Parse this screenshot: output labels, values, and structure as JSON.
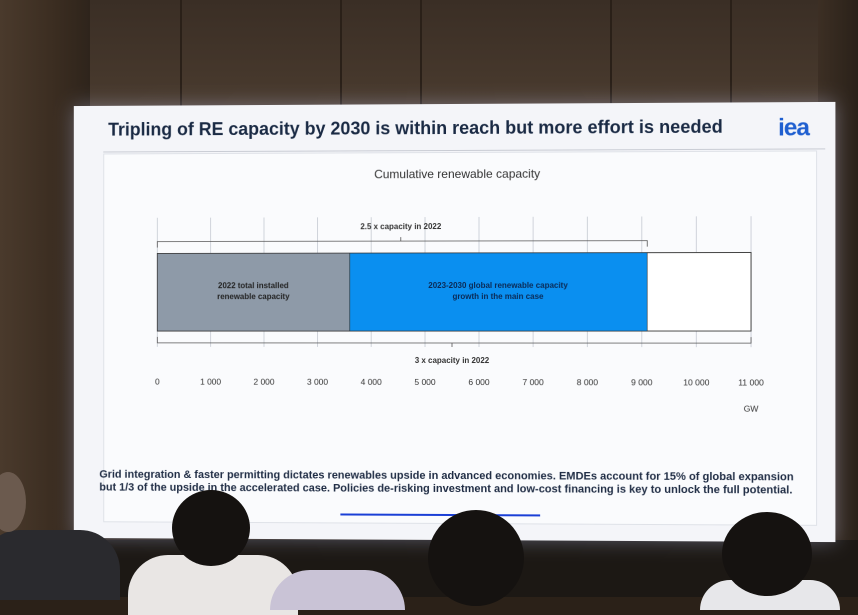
{
  "slide": {
    "title": "Tripling of RE capacity by 2030 is within reach but more effort is needed",
    "logo_text": "iea",
    "caption": "Grid integration & faster permitting dictates renewables upside in advanced economies. EMDEs account for 15% of global expansion but 1/3 of the upside in the accelerated case. Policies de-risking investment and low-cost financing is key to unlock the full potential."
  },
  "chart_data": {
    "type": "bar",
    "orientation": "horizontal-stacked",
    "title": "Cumulative renewable capacity",
    "xlabel": "GW",
    "xlim": [
      0,
      11000
    ],
    "ticks": [
      "0",
      "1 000",
      "2 000",
      "3 000",
      "4 000",
      "5 000",
      "6 000",
      "7 000",
      "8 000",
      "9 000",
      "10 000",
      "11 000"
    ],
    "series": [
      {
        "name": "2022 total installed renewable capacity",
        "value": 3600,
        "color": "#8e9aa8"
      },
      {
        "name": "2023-2030 global renewable capacity growth in the main case",
        "value": 5500,
        "color": "#0a8ff0"
      }
    ],
    "target_total": 11000,
    "annotations": [
      {
        "text": "2.5 x capacity in 2022",
        "value": 9100,
        "position": "above"
      },
      {
        "text": "3 x capacity in 2022",
        "value": 11000,
        "position": "below"
      }
    ],
    "colors": {
      "outline": "#444444",
      "grid": "#cfd3da",
      "target_fill": "#ffffff"
    }
  }
}
